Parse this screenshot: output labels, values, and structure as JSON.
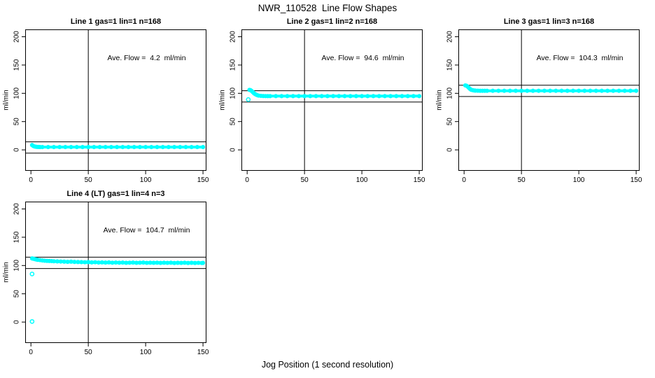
{
  "page": {
    "main_title": "NWR_110528  Line Flow Shapes",
    "x_axis_label": "Jog Position (1 second resolution)",
    "colors": {
      "marker": "#00FFFF",
      "axis": "#000000",
      "background": "#FFFFFF"
    }
  },
  "chart_data": {
    "type": "scatter",
    "layout": {
      "rows": 2,
      "cols": 3,
      "used_panels": 4,
      "grid": "off",
      "legend": "none"
    },
    "xlabel": "Jog Position (1 second resolution)",
    "ylabel": "ml/min",
    "x_ticks": [
      0,
      50,
      100,
      150
    ],
    "y_ticks": [
      0,
      50,
      100,
      150,
      200
    ],
    "xlim": [
      -5,
      153
    ],
    "ylim": [
      -37,
      213
    ],
    "marker": "open-circle",
    "panels": [
      {
        "title": "Line 1 gas=1 lin=1 n=168",
        "annotation": "Ave. Flow =  4.2  ml/min",
        "ave_flow": 4.2,
        "ref_lines_y": [
          14.2,
          -5.8
        ],
        "vline_x": 50,
        "noisy": false,
        "outliers": [],
        "points": [
          [
            1,
            8.5
          ],
          [
            2,
            6.9
          ],
          [
            3,
            6.1
          ],
          [
            4,
            5.6
          ],
          [
            5,
            5.3
          ],
          [
            6,
            5.2
          ],
          [
            7,
            5.1
          ],
          [
            8,
            5.0
          ],
          [
            10,
            5.0
          ],
          [
            15,
            5.0
          ],
          [
            20,
            5.0
          ],
          [
            25,
            5.0
          ],
          [
            30,
            5.0
          ],
          [
            35,
            5.0
          ],
          [
            40,
            5.0
          ],
          [
            45,
            5.0
          ],
          [
            50,
            5.0
          ],
          [
            55,
            5.0
          ],
          [
            60,
            5.0
          ],
          [
            65,
            5.0
          ],
          [
            70,
            5.0
          ],
          [
            75,
            5.0
          ],
          [
            80,
            5.0
          ],
          [
            85,
            5.0
          ],
          [
            90,
            5.0
          ],
          [
            95,
            5.0
          ],
          [
            100,
            5.0
          ],
          [
            105,
            5.0
          ],
          [
            110,
            5.0
          ],
          [
            115,
            5.0
          ],
          [
            120,
            5.0
          ],
          [
            125,
            5.0
          ],
          [
            130,
            5.0
          ],
          [
            135,
            5.0
          ],
          [
            140,
            5.0
          ],
          [
            145,
            5.0
          ],
          [
            150,
            5.0
          ]
        ]
      },
      {
        "title": "Line 2 gas=1 lin=2 n=168",
        "annotation": "Ave. Flow =  94.6  ml/min",
        "ave_flow": 94.6,
        "ref_lines_y": [
          104.6,
          84.6
        ],
        "vline_x": 50,
        "noisy": false,
        "outliers": [
          [
            1,
            89
          ]
        ],
        "points": [
          [
            2,
            106
          ],
          [
            3,
            105.5
          ],
          [
            4,
            104
          ],
          [
            5,
            102
          ],
          [
            6,
            100
          ],
          [
            7,
            98.5
          ],
          [
            8,
            97.5
          ],
          [
            9,
            96.5
          ],
          [
            10,
            96
          ],
          [
            12,
            95.5
          ],
          [
            14,
            95.2
          ],
          [
            16,
            95.1
          ],
          [
            18,
            95
          ],
          [
            20,
            95
          ],
          [
            25,
            95
          ],
          [
            30,
            95
          ],
          [
            35,
            95
          ],
          [
            40,
            95
          ],
          [
            45,
            95
          ],
          [
            50,
            95
          ],
          [
            55,
            95
          ],
          [
            60,
            95
          ],
          [
            65,
            95
          ],
          [
            70,
            95
          ],
          [
            75,
            95
          ],
          [
            80,
            95
          ],
          [
            85,
            95
          ],
          [
            90,
            95
          ],
          [
            95,
            95
          ],
          [
            100,
            95
          ],
          [
            105,
            95
          ],
          [
            110,
            95
          ],
          [
            115,
            95
          ],
          [
            120,
            95
          ],
          [
            125,
            95
          ],
          [
            130,
            95
          ],
          [
            135,
            95
          ],
          [
            140,
            95
          ],
          [
            145,
            95
          ],
          [
            150,
            95
          ]
        ]
      },
      {
        "title": "Line 3 gas=1 lin=3 n=168",
        "annotation": "Ave. Flow =  104.3  ml/min",
        "ave_flow": 104.3,
        "ref_lines_y": [
          114.3,
          94.3
        ],
        "vline_x": 50,
        "noisy": false,
        "outliers": [],
        "points": [
          [
            1,
            114
          ],
          [
            2,
            113.5
          ],
          [
            3,
            112
          ],
          [
            4,
            110
          ],
          [
            5,
            108
          ],
          [
            6,
            106.5
          ],
          [
            7,
            105.8
          ],
          [
            8,
            105.3
          ],
          [
            9,
            105
          ],
          [
            10,
            104.8
          ],
          [
            12,
            104.6
          ],
          [
            14,
            104.5
          ],
          [
            16,
            104.5
          ],
          [
            18,
            104.5
          ],
          [
            20,
            104.5
          ],
          [
            25,
            104.5
          ],
          [
            30,
            104.5
          ],
          [
            35,
            104.5
          ],
          [
            40,
            104.5
          ],
          [
            45,
            104.5
          ],
          [
            50,
            104.5
          ],
          [
            55,
            104.5
          ],
          [
            60,
            104.5
          ],
          [
            65,
            104.5
          ],
          [
            70,
            104.5
          ],
          [
            75,
            104.5
          ],
          [
            80,
            104.5
          ],
          [
            85,
            104.5
          ],
          [
            90,
            104.5
          ],
          [
            95,
            104.5
          ],
          [
            100,
            104.5
          ],
          [
            105,
            104.5
          ],
          [
            110,
            104.5
          ],
          [
            115,
            104.5
          ],
          [
            120,
            104.5
          ],
          [
            125,
            104.5
          ],
          [
            130,
            104.5
          ],
          [
            135,
            104.5
          ],
          [
            140,
            104.5
          ],
          [
            145,
            104.5
          ],
          [
            150,
            104.5
          ]
        ]
      },
      {
        "title": "Line 4 (LT) gas=1 lin=4 n=3",
        "annotation": "Ave. Flow =  104.7  ml/min",
        "ave_flow": 104.7,
        "ref_lines_y": [
          114.7,
          94.7
        ],
        "vline_x": 50,
        "noisy": true,
        "outliers": [
          [
            1,
            85
          ],
          [
            1,
            1
          ]
        ],
        "points": [
          [
            1,
            112.5
          ],
          [
            2,
            112
          ],
          [
            3,
            111.5
          ],
          [
            4,
            111
          ],
          [
            5,
            110.5
          ],
          [
            6,
            110
          ],
          [
            8,
            109.5
          ],
          [
            10,
            109
          ],
          [
            12,
            108.5
          ],
          [
            14,
            108.2
          ],
          [
            16,
            108
          ],
          [
            18,
            107.8
          ],
          [
            20,
            107.5
          ],
          [
            23,
            107.2
          ],
          [
            26,
            107
          ],
          [
            29,
            106.8
          ],
          [
            32,
            106.5
          ],
          [
            35,
            106.8
          ],
          [
            38,
            106.3
          ],
          [
            41,
            106.2
          ],
          [
            44,
            106
          ],
          [
            47,
            105.8
          ],
          [
            50,
            106
          ],
          [
            53,
            105.5
          ],
          [
            56,
            105.8
          ],
          [
            59,
            105.3
          ],
          [
            62,
            105.5
          ],
          [
            65,
            105.2
          ],
          [
            68,
            105.5
          ],
          [
            71,
            105
          ],
          [
            74,
            105.3
          ],
          [
            77,
            105
          ],
          [
            80,
            105.2
          ],
          [
            83,
            104.8
          ],
          [
            86,
            105
          ],
          [
            89,
            105.2
          ],
          [
            92,
            104.8
          ],
          [
            95,
            105
          ],
          [
            98,
            105.2
          ],
          [
            101,
            104.7
          ],
          [
            104,
            105
          ],
          [
            107,
            104.8
          ],
          [
            110,
            105
          ],
          [
            113,
            104.6
          ],
          [
            116,
            104.9
          ],
          [
            119,
            104.7
          ],
          [
            122,
            105
          ],
          [
            125,
            104.5
          ],
          [
            128,
            104.8
          ],
          [
            131,
            104.6
          ],
          [
            134,
            104.9
          ],
          [
            137,
            104.5
          ],
          [
            140,
            104.8
          ],
          [
            143,
            104.5
          ],
          [
            146,
            104.7
          ],
          [
            149,
            104.4
          ],
          [
            150,
            104.6
          ]
        ]
      }
    ]
  }
}
